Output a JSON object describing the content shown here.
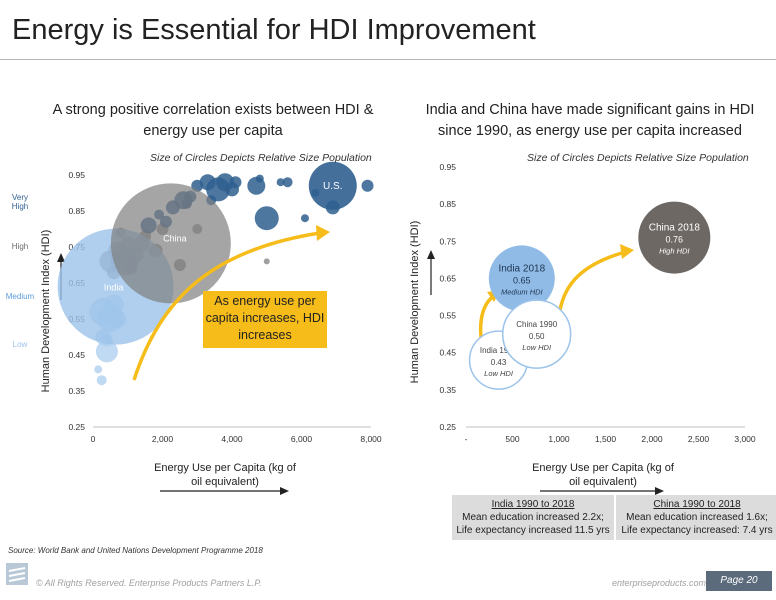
{
  "page": {
    "title": "Energy is Essential for HDI Improvement",
    "source": "Source:  World Bank and United Nations Development Programme 2018",
    "copyright": "© All Rights Reserved. Enterprise Products Partners L.P.",
    "website": "enterpriseproducts.com",
    "page_number": "Page 20"
  },
  "colors": {
    "blue_dark": "#2f5f8f",
    "blue_light": "#8fbbe6",
    "grey": "#7f7f7f",
    "gold": "#f6bc1a"
  },
  "left_panel": {
    "subtitle": "A strong positive correlation exists between HDI & energy use per capita",
    "size_note": "Size of Circles Depicts Relative Size Population",
    "hdi_categories": [
      {
        "label": "Very High",
        "color": "#2f5f8f",
        "value": 0.88
      },
      {
        "label": "High",
        "color": "#6a6a6a",
        "value": 0.75
      },
      {
        "label": "Medium",
        "color": "#5b9bd5",
        "value": 0.61
      },
      {
        "label": "Low",
        "color": "#9cc3ea",
        "value": 0.46
      }
    ],
    "callout": "As energy use per capita increases, HDI increases"
  },
  "right_panel": {
    "subtitle": "India and China have made significant gains in HDI since 1990, as energy use per capita increased",
    "size_note": "Size of Circles Depicts Relative Size Population",
    "india_box": {
      "heading": "India 1990 to 2018",
      "line1": "Mean education increased 2.2x;",
      "line2": "Life expectancy increased 11.5 yrs"
    },
    "china_box": {
      "heading": "China 1990 to 2018",
      "line1": "Mean education increased 1.6x;",
      "line2": "Life expectancy increased: 7.4 yrs"
    }
  },
  "chart_data": [
    {
      "type": "scatter",
      "title": "A strong positive correlation exists between HDI & energy use per capita",
      "xlabel": "Energy Use per Capita (kg of oil equivalent)",
      "ylabel": "Human Development Index (HDI)",
      "xlim": [
        0,
        8000
      ],
      "ylim": [
        0.25,
        0.95
      ],
      "x_ticks": [
        "0",
        "2,000",
        "4,000",
        "6,000",
        "8,000"
      ],
      "y_ticks": [
        "0.25",
        "0.35",
        "0.45",
        "0.55",
        "0.65",
        "0.75",
        "0.85",
        "0.95"
      ],
      "grid": false,
      "labeled_points": [
        {
          "label": "India",
          "x": 650,
          "y": 0.64,
          "relative_size": 58
        },
        {
          "label": "China",
          "x": 2240,
          "y": 0.76,
          "relative_size": 60
        },
        {
          "label": "U.S.",
          "x": 6900,
          "y": 0.92,
          "relative_size": 24
        }
      ],
      "other_points": [
        {
          "x": 250,
          "y": 0.38,
          "s": 5,
          "c": "light"
        },
        {
          "x": 150,
          "y": 0.41,
          "s": 4,
          "c": "light"
        },
        {
          "x": 400,
          "y": 0.46,
          "s": 11,
          "c": "light"
        },
        {
          "x": 300,
          "y": 0.5,
          "s": 8,
          "c": "light"
        },
        {
          "x": 500,
          "y": 0.55,
          "s": 13,
          "c": "light"
        },
        {
          "x": 600,
          "y": 0.59,
          "s": 10,
          "c": "light"
        },
        {
          "x": 300,
          "y": 0.57,
          "s": 14,
          "c": "light"
        },
        {
          "x": 700,
          "y": 0.55,
          "s": 9,
          "c": "light"
        },
        {
          "x": 400,
          "y": 0.49,
          "s": 6,
          "c": "light"
        },
        {
          "x": 500,
          "y": 0.71,
          "s": 11,
          "c": "grey"
        },
        {
          "x": 700,
          "y": 0.74,
          "s": 9,
          "c": "grey"
        },
        {
          "x": 900,
          "y": 0.71,
          "s": 14,
          "c": "grey"
        },
        {
          "x": 1200,
          "y": 0.73,
          "s": 9,
          "c": "grey"
        },
        {
          "x": 1000,
          "y": 0.76,
          "s": 7,
          "c": "grey"
        },
        {
          "x": 1400,
          "y": 0.76,
          "s": 8,
          "c": "grey"
        },
        {
          "x": 1500,
          "y": 0.78,
          "s": 6,
          "c": "grey"
        },
        {
          "x": 1800,
          "y": 0.74,
          "s": 7,
          "c": "grey"
        },
        {
          "x": 2000,
          "y": 0.8,
          "s": 6,
          "c": "grey"
        },
        {
          "x": 2500,
          "y": 0.7,
          "s": 6,
          "c": "grey"
        },
        {
          "x": 3000,
          "y": 0.8,
          "s": 5,
          "c": "grey"
        },
        {
          "x": 5000,
          "y": 0.71,
          "s": 3,
          "c": "grey"
        },
        {
          "x": 800,
          "y": 0.79,
          "s": 5,
          "c": "grey"
        },
        {
          "x": 1100,
          "y": 0.69,
          "s": 6,
          "c": "grey"
        },
        {
          "x": 1600,
          "y": 0.81,
          "s": 8,
          "c": "blue"
        },
        {
          "x": 2100,
          "y": 0.82,
          "s": 6,
          "c": "blue"
        },
        {
          "x": 2300,
          "y": 0.86,
          "s": 7,
          "c": "blue"
        },
        {
          "x": 2600,
          "y": 0.88,
          "s": 9,
          "c": "blue"
        },
        {
          "x": 2800,
          "y": 0.89,
          "s": 6,
          "c": "blue"
        },
        {
          "x": 2700,
          "y": 0.87,
          "s": 5,
          "c": "blue"
        },
        {
          "x": 3000,
          "y": 0.92,
          "s": 6,
          "c": "blue"
        },
        {
          "x": 3300,
          "y": 0.93,
          "s": 8,
          "c": "blue"
        },
        {
          "x": 3600,
          "y": 0.91,
          "s": 12,
          "c": "blue"
        },
        {
          "x": 3800,
          "y": 0.93,
          "s": 9,
          "c": "blue"
        },
        {
          "x": 4000,
          "y": 0.91,
          "s": 7,
          "c": "blue"
        },
        {
          "x": 4100,
          "y": 0.93,
          "s": 6,
          "c": "blue"
        },
        {
          "x": 4700,
          "y": 0.92,
          "s": 9,
          "c": "blue"
        },
        {
          "x": 5000,
          "y": 0.83,
          "s": 12,
          "c": "blue"
        },
        {
          "x": 5400,
          "y": 0.93,
          "s": 4,
          "c": "blue"
        },
        {
          "x": 5600,
          "y": 0.93,
          "s": 5,
          "c": "blue"
        },
        {
          "x": 6100,
          "y": 0.83,
          "s": 4,
          "c": "blue"
        },
        {
          "x": 6400,
          "y": 0.9,
          "s": 4,
          "c": "blue"
        },
        {
          "x": 6900,
          "y": 0.86,
          "s": 7,
          "c": "blue"
        },
        {
          "x": 7900,
          "y": 0.92,
          "s": 6,
          "c": "blue"
        },
        {
          "x": 1900,
          "y": 0.84,
          "s": 5,
          "c": "blue"
        },
        {
          "x": 3400,
          "y": 0.88,
          "s": 5,
          "c": "blue"
        },
        {
          "x": 1000,
          "y": 0.7,
          "s": 8,
          "c": "grey"
        },
        {
          "x": 600,
          "y": 0.68,
          "s": 7,
          "c": "grey"
        },
        {
          "x": 4800,
          "y": 0.94,
          "s": 4,
          "c": "blue"
        }
      ]
    },
    {
      "type": "scatter",
      "title": "India and China have made significant gains in HDI since 1990, as energy use per capita increased",
      "xlabel": "Energy Use per Capita (kg of oil equivalent)",
      "ylabel": "Human Development Index (HDI)",
      "xlim": [
        0,
        3000
      ],
      "ylim": [
        0.25,
        0.95
      ],
      "x_ticks": [
        "-",
        "500",
        "1,000",
        "1,500",
        "2,000",
        "2,500",
        "3,000"
      ],
      "y_ticks": [
        "0.25",
        "0.35",
        "0.45",
        "0.55",
        "0.65",
        "0.75",
        "0.85",
        "0.95"
      ],
      "grid": false,
      "points": [
        {
          "name": "India 1990",
          "x": 350,
          "y": 0.43,
          "hdi": "0.43",
          "category": "Low HDI",
          "style": "outline"
        },
        {
          "name": "India 2018",
          "x": 600,
          "y": 0.65,
          "hdi": "0.65",
          "category": "Medium HDI",
          "style": "light"
        },
        {
          "name": "China 1990",
          "x": 760,
          "y": 0.5,
          "hdi": "0.50",
          "category": "Low HDI",
          "style": "outline"
        },
        {
          "name": "China 2018",
          "x": 2240,
          "y": 0.76,
          "hdi": "0.76",
          "category": "High HDI",
          "style": "grey"
        }
      ]
    }
  ]
}
